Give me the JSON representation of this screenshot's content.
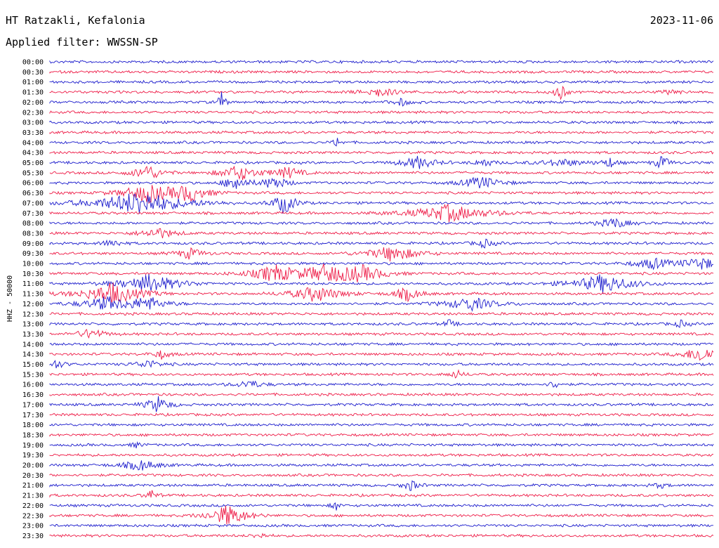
{
  "header": {
    "station": "HT Ratzakli, Kefalonia",
    "date": "2023-11-06",
    "filter": "Applied filter: WWSSN-SP"
  },
  "chart_data": {
    "type": "line",
    "ylabel": "HHZ - 50000",
    "row_times": [
      "00:00",
      "00:30",
      "01:00",
      "01:30",
      "02:00",
      "02:30",
      "03:00",
      "03:30",
      "04:00",
      "04:30",
      "05:00",
      "05:30",
      "06:00",
      "06:30",
      "07:00",
      "07:30",
      "08:00",
      "08:30",
      "09:00",
      "09:30",
      "10:00",
      "10:30",
      "11:00",
      "11:30",
      "12:00",
      "12:30",
      "13:00",
      "13:30",
      "14:00",
      "14:30",
      "15:00",
      "15:30",
      "16:00",
      "16:30",
      "17:00",
      "17:30",
      "18:00",
      "18:30",
      "19:00",
      "19:30",
      "20:00",
      "20:30",
      "21:00",
      "21:30",
      "22:00",
      "22:30",
      "23:00",
      "23:30"
    ],
    "series_colors": [
      "#1a1acc",
      "#ee1a46"
    ],
    "color_pattern": "alternating",
    "grid": false
  }
}
